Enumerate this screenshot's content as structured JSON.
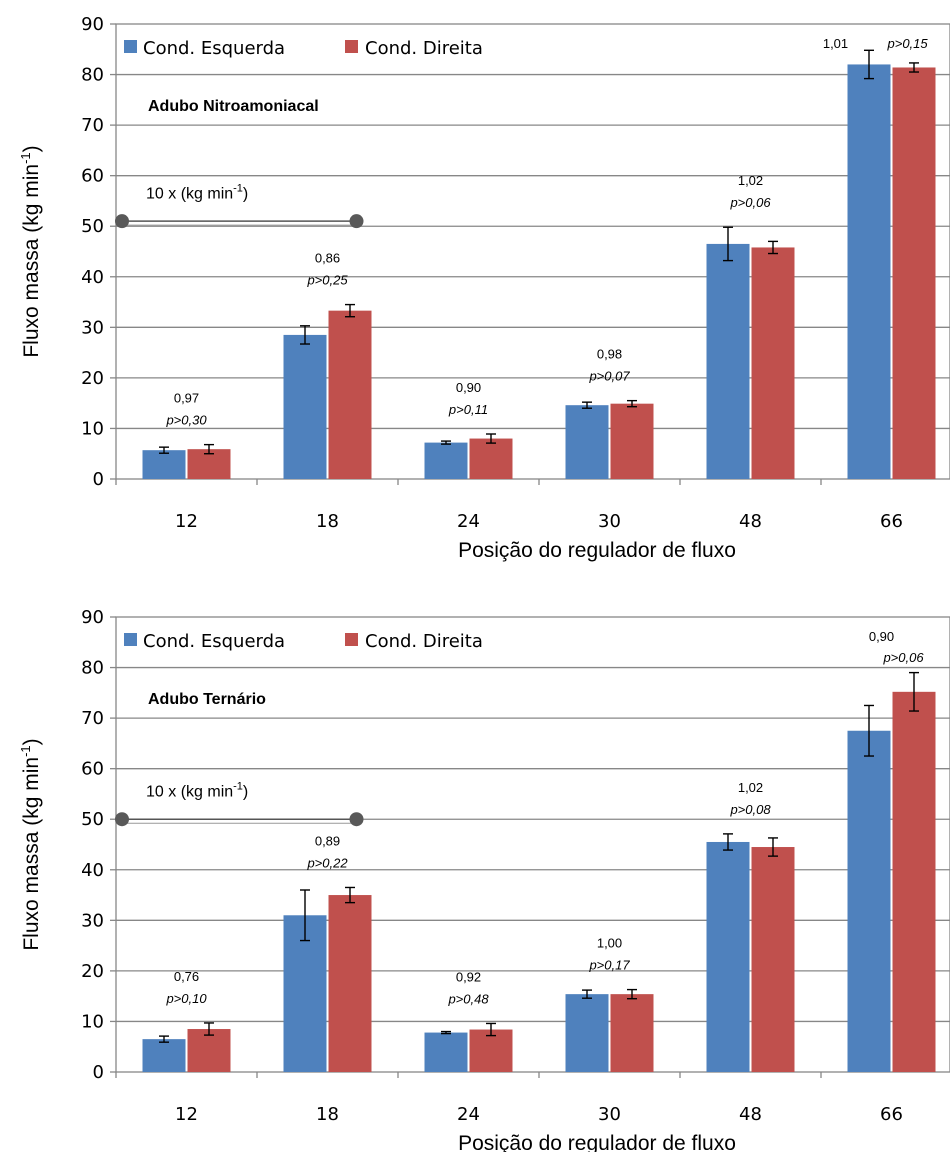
{
  "colors": {
    "left": "#4f81bd",
    "right": "#c0504d",
    "grid": "#878787",
    "axis": "#878787"
  },
  "chart_data": [
    {
      "type": "bar",
      "inset_label": "Adubo Nitroamoniacal",
      "xlabel": "Posição do regulador de fluxo",
      "ylabel": "Fluxo massa (kg min-1)",
      "ylabel_main": "Fluxo massa (kg min",
      "ylabel_sup": "-1",
      "ylabel_close": ")",
      "ylim": [
        0,
        90
      ],
      "yticks": [
        "0",
        "10",
        "20",
        "30",
        "40",
        "50",
        "60",
        "70",
        "80",
        "90"
      ],
      "grid": true,
      "legend_position": "top-left",
      "categories": [
        "12",
        "18",
        "24",
        "30",
        "48",
        "66"
      ],
      "series": [
        {
          "name": "Cond. Esquerda",
          "values": [
            5.7,
            28.5,
            7.2,
            14.6,
            46.5,
            82.0
          ],
          "errors": [
            0.6,
            1.8,
            0.3,
            0.6,
            3.3,
            2.8
          ]
        },
        {
          "name": "Cond. Direita",
          "values": [
            5.9,
            33.3,
            8.0,
            14.9,
            45.8,
            81.4
          ],
          "errors": [
            0.9,
            1.2,
            0.9,
            0.6,
            1.2,
            0.9
          ]
        }
      ],
      "annotations": [
        {
          "ratio": "0,97",
          "p": "p>0,30"
        },
        {
          "ratio": "0,86",
          "p": "p>0,25"
        },
        {
          "ratio": "0,90",
          "p": "p>0,11"
        },
        {
          "ratio": "0,98",
          "p": "p>0,07"
        },
        {
          "ratio": "1,02",
          "p": "p>0,06"
        },
        {
          "ratio": "1,01",
          "p": "p>0,15"
        }
      ],
      "scale_note": {
        "text": "10 x (kg min",
        "sup": "-1",
        "close": ")",
        "y": 51,
        "x_from": "left",
        "x_to": "18"
      }
    },
    {
      "type": "bar",
      "inset_label": "Adubo Ternário",
      "xlabel": "Posição do regulador de fluxo",
      "ylabel": "Fluxo massa (kg min-1)",
      "ylabel_main": "Fluxo massa (kg min",
      "ylabel_sup": "-1",
      "ylabel_close": ")",
      "ylim": [
        0,
        90
      ],
      "yticks": [
        "0",
        "10",
        "20",
        "30",
        "40",
        "50",
        "60",
        "70",
        "80",
        "90"
      ],
      "grid": true,
      "legend_position": "top-left",
      "categories": [
        "12",
        "18",
        "24",
        "30",
        "48",
        "66"
      ],
      "series": [
        {
          "name": "Cond. Esquerda",
          "values": [
            6.5,
            31.0,
            7.8,
            15.4,
            45.5,
            67.5
          ],
          "errors": [
            0.6,
            5.0,
            0.2,
            0.8,
            1.6,
            5.0
          ]
        },
        {
          "name": "Cond. Direita",
          "values": [
            8.5,
            35.0,
            8.4,
            15.4,
            44.5,
            75.2
          ],
          "errors": [
            1.2,
            1.5,
            1.2,
            0.9,
            1.8,
            3.8
          ]
        }
      ],
      "annotations": [
        {
          "ratio": "0,76",
          "p": "p>0,10"
        },
        {
          "ratio": "0,89",
          "p": "p>0,22"
        },
        {
          "ratio": "0,92",
          "p": "p>0,48"
        },
        {
          "ratio": "1,00",
          "p": "p>0,17"
        },
        {
          "ratio": "1,02",
          "p": "p>0,08"
        },
        {
          "ratio": "0,90",
          "p": "p>0,06"
        }
      ],
      "scale_note": {
        "text": "10 x (kg min",
        "sup": "-1",
        "close": ")",
        "y": 50,
        "x_from": "left",
        "x_to": "18"
      }
    }
  ]
}
